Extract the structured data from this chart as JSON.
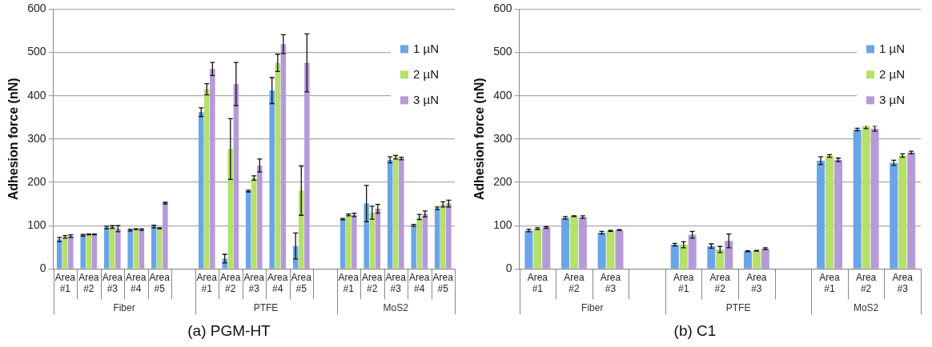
{
  "chart_data": [
    {
      "type": "bar",
      "title": "(a) PGM-HT",
      "ylabel": "Adhesion force (nN)",
      "categories": [
        "Area #1",
        "Area #2",
        "Area #3",
        "Area #4",
        "Area #5",
        null,
        "Area #1",
        "Area #2",
        "Area #3",
        "Area #4",
        "Area #5",
        null,
        "Area #1",
        "Area #2",
        "Area #3",
        "Area #4",
        "Area #5"
      ],
      "series": [
        {
          "name": "1 µN",
          "color": "#6aa5e8",
          "values": [
            68,
            78,
            96,
            90,
            98,
            null,
            362,
            24,
            180,
            412,
            53,
            null,
            115,
            151,
            252,
            101,
            140
          ],
          "errors": [
            5,
            2,
            3,
            2,
            3,
            null,
            10,
            10,
            2,
            30,
            30,
            null,
            2,
            42,
            7,
            2,
            3
          ]
        },
        {
          "name": "2 µN",
          "color": "#b5e06a",
          "values": [
            74,
            80,
            97,
            92,
            94,
            null,
            415,
            277,
            210,
            476,
            181,
            null,
            125,
            130,
            258,
            120,
            149
          ],
          "errors": [
            3,
            1,
            3,
            1,
            1,
            null,
            13,
            70,
            5,
            20,
            57,
            null,
            2,
            15,
            4,
            6,
            6
          ]
        },
        {
          "name": "3 µN",
          "color": "#b59ad8",
          "values": [
            76,
            80,
            93,
            91,
            152,
            null,
            462,
            427,
            239,
            519,
            476,
            null,
            125,
            139,
            255,
            127,
            151
          ],
          "errors": [
            3,
            1,
            7,
            2,
            2,
            null,
            15,
            50,
            15,
            22,
            67,
            null,
            4,
            10,
            3,
            7,
            8
          ]
        }
      ],
      "ylim": [
        0,
        600
      ],
      "yticks": [
        0,
        100,
        200,
        300,
        400,
        500,
        600
      ],
      "grid": "y",
      "legend": "top right",
      "annotations": [
        "Fiber",
        "PTFE",
        "MoS2"
      ]
    },
    {
      "type": "bar",
      "title": "(b) C1",
      "ylabel": "Adhesion force (nN)",
      "categories": [
        "Area #1",
        "Area #2",
        "Area #3",
        null,
        "Area #1",
        "Area #2",
        "Area #3",
        null,
        "Area #1",
        "Area #2",
        "Area #3"
      ],
      "series": [
        {
          "name": "1 µN",
          "color": "#6aa5e8",
          "values": [
            89,
            118,
            84,
            null,
            56,
            53,
            41,
            null,
            250,
            322,
            245
          ],
          "errors": [
            3,
            3,
            3,
            null,
            3,
            5,
            1,
            null,
            9,
            3,
            6
          ]
        },
        {
          "name": "2 µN",
          "color": "#b5e06a",
          "values": [
            93,
            122,
            88,
            null,
            56,
            45,
            42,
            null,
            261,
            331,
            262
          ],
          "errors": [
            2,
            1,
            1,
            null,
            7,
            7,
            1,
            null,
            3,
            7,
            4
          ]
        },
        {
          "name": "3 µN",
          "color": "#b59ad8",
          "values": [
            96,
            120,
            90,
            null,
            79,
            65,
            47,
            null,
            252,
            324,
            269
          ],
          "errors": [
            2,
            3,
            1,
            null,
            8,
            16,
            2,
            null,
            4,
            6,
            3
          ]
        }
      ],
      "ylim": [
        0,
        600
      ],
      "yticks": [
        0,
        100,
        200,
        300,
        400,
        500,
        600
      ],
      "grid": "y",
      "legend": "top right",
      "annotations": [
        "Fiber",
        "PTFE",
        "MoS2"
      ]
    }
  ]
}
